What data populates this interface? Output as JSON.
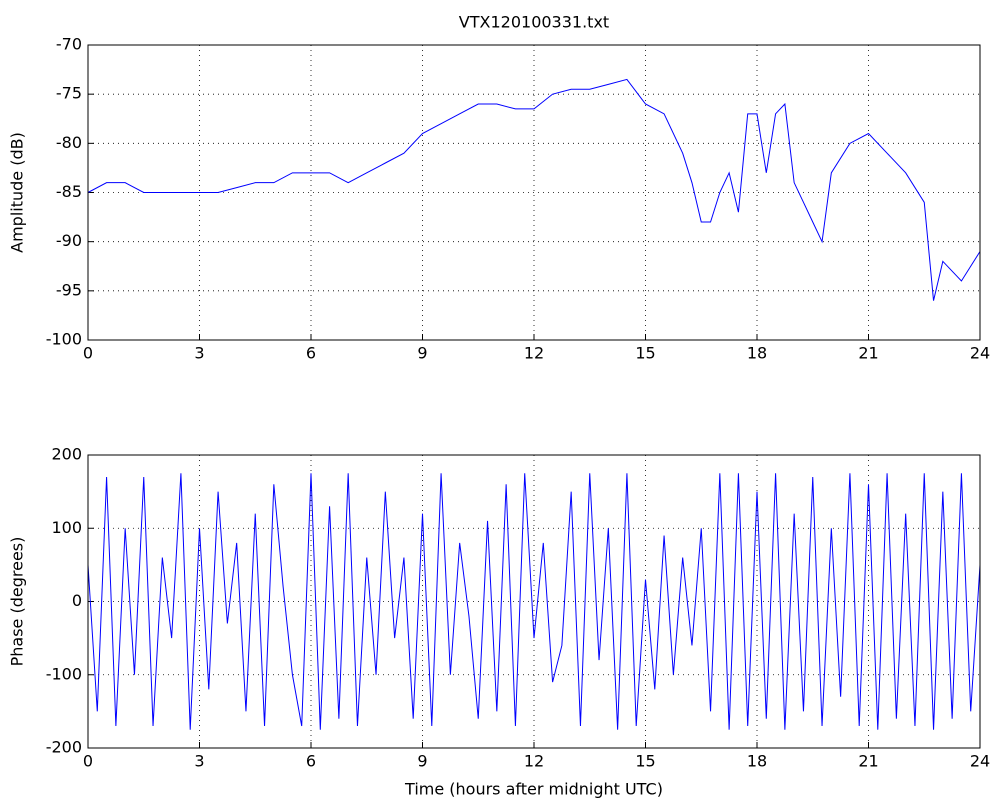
{
  "chart_data": [
    {
      "type": "line",
      "title": "VTX120100331.txt",
      "ylabel": "Amplitude (dB)",
      "x": [
        0,
        0.5,
        1,
        1.5,
        2,
        2.5,
        3,
        3.5,
        4,
        4.5,
        5,
        5.5,
        6,
        6.5,
        7,
        7.5,
        8,
        8.5,
        9,
        9.5,
        10,
        10.5,
        11,
        11.5,
        12,
        12.5,
        13,
        13.5,
        14,
        14.5,
        15,
        15.5,
        16,
        16.25,
        16.5,
        16.75,
        17,
        17.25,
        17.5,
        17.75,
        18,
        18.25,
        18.5,
        18.75,
        19,
        19.25,
        19.5,
        19.75,
        20,
        20.5,
        21,
        21.5,
        22,
        22.5,
        22.75,
        23,
        23.5,
        24
      ],
      "series": [
        {
          "color": "#0000ff",
          "values": [
            -85,
            -84,
            -84,
            -85,
            -85,
            -85,
            -85,
            -85,
            -84.5,
            -84,
            -84,
            -83,
            -83,
            -83,
            -84,
            -83,
            -82,
            -81,
            -79,
            -78,
            -77,
            -76,
            -76,
            -76.5,
            -76.5,
            -75,
            -74.5,
            -74.5,
            -74,
            -73.5,
            -76,
            -77,
            -81,
            -84,
            -88,
            -88,
            -85,
            -83,
            -87,
            -77,
            -77,
            -83,
            -77,
            -76,
            -84,
            -86,
            -88,
            -90,
            -83,
            -80,
            -79,
            -81,
            -83,
            -86,
            -96,
            -92,
            -94,
            -91
          ]
        }
      ],
      "xlim": [
        0,
        24
      ],
      "xticks": [
        0,
        3,
        6,
        9,
        12,
        15,
        18,
        21,
        24
      ],
      "ylim": [
        -100,
        -70
      ],
      "yticks": [
        -100,
        -95,
        -90,
        -85,
        -80,
        -75,
        -70
      ],
      "grid": true
    },
    {
      "type": "line",
      "xlabel": "Time (hours after midnight UTC)",
      "ylabel": "Phase (degrees)",
      "x": [
        0,
        0.25,
        0.5,
        0.75,
        1,
        1.25,
        1.5,
        1.75,
        2,
        2.25,
        2.5,
        2.75,
        3,
        3.25,
        3.5,
        3.75,
        4,
        4.25,
        4.5,
        4.75,
        5,
        5.25,
        5.5,
        5.75,
        6,
        6.25,
        6.5,
        6.75,
        7,
        7.25,
        7.5,
        7.75,
        8,
        8.25,
        8.5,
        8.75,
        9,
        9.25,
        9.5,
        9.75,
        10,
        10.25,
        10.5,
        10.75,
        11,
        11.25,
        11.5,
        11.75,
        12,
        12.25,
        12.5,
        12.75,
        13,
        13.25,
        13.5,
        13.75,
        14,
        14.25,
        14.5,
        14.75,
        15,
        15.25,
        15.5,
        15.75,
        16,
        16.25,
        16.5,
        16.75,
        17,
        17.25,
        17.5,
        17.75,
        18,
        18.25,
        18.5,
        18.75,
        19,
        19.25,
        19.5,
        19.75,
        20,
        20.25,
        20.5,
        20.75,
        21,
        21.25,
        21.5,
        21.75,
        22,
        22.25,
        22.5,
        22.75,
        23,
        23.25,
        23.5,
        23.75,
        24
      ],
      "series": [
        {
          "color": "#0000ff",
          "values": [
            50,
            -150,
            170,
            -170,
            100,
            -100,
            170,
            -170,
            60,
            -50,
            175,
            -175,
            100,
            -120,
            150,
            -30,
            80,
            -150,
            120,
            -170,
            160,
            20,
            -100,
            -170,
            175,
            -175,
            130,
            -160,
            175,
            -170,
            60,
            -100,
            150,
            -50,
            60,
            -160,
            120,
            -170,
            175,
            -100,
            80,
            -20,
            -160,
            110,
            -150,
            160,
            -170,
            175,
            -50,
            80,
            -110,
            -60,
            150,
            -170,
            175,
            -80,
            100,
            -175,
            175,
            -170,
            30,
            -120,
            90,
            -100,
            60,
            -60,
            100,
            -150,
            175,
            -175,
            175,
            -170,
            150,
            -160,
            175,
            -175,
            120,
            -150,
            170,
            -170,
            100,
            -130,
            175,
            -170,
            160,
            -175,
            175,
            -160,
            120,
            -170,
            175,
            -175,
            150,
            -160,
            175,
            -150,
            50
          ]
        }
      ],
      "xlim": [
        0,
        24
      ],
      "xticks": [
        0,
        3,
        6,
        9,
        12,
        15,
        18,
        21,
        24
      ],
      "ylim": [
        -200,
        200
      ],
      "yticks": [
        -200,
        -100,
        0,
        100,
        200
      ],
      "grid": true
    }
  ]
}
